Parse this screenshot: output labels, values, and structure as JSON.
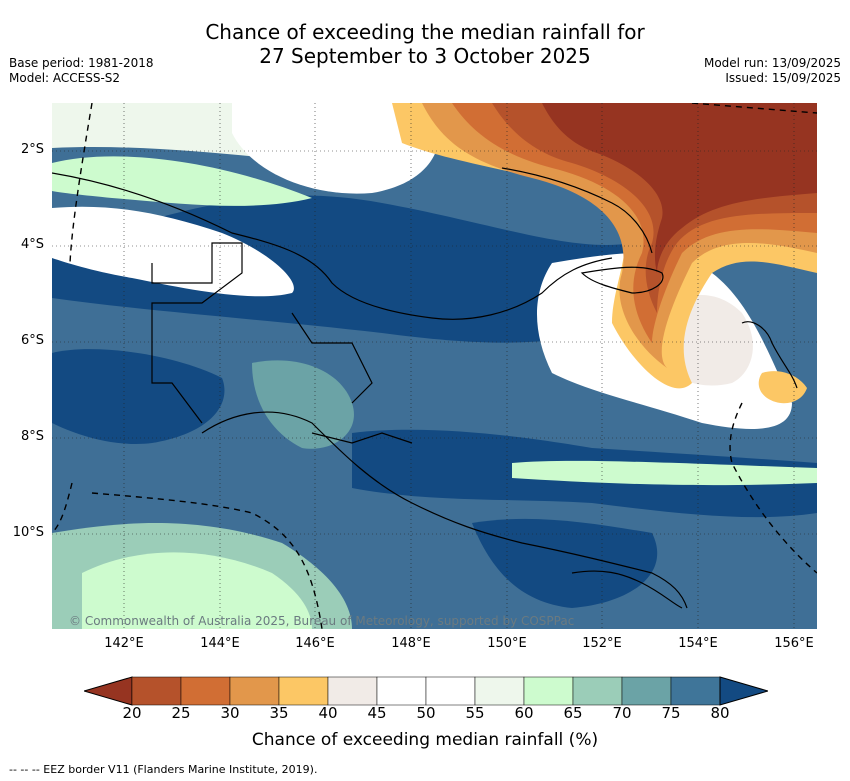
{
  "title": {
    "line1": "Chance of exceeding the median rainfall for",
    "line2": "27 September to 3 October 2025"
  },
  "meta_left": {
    "base_period": "Base period: 1981-2018",
    "model": "Model: ACCESS-S2"
  },
  "meta_right": {
    "model_run": "Model run: 13/09/2025",
    "issued": "Issued: 15/09/2025"
  },
  "map": {
    "lat_labels": [
      "2°S",
      "4°S",
      "6°S",
      "8°S",
      "10°S"
    ],
    "lon_labels": [
      "142°E",
      "144°E",
      "146°E",
      "148°E",
      "150°E",
      "152°E",
      "154°E",
      "156°E"
    ],
    "credit": "© Commonwealth of Australia 2025, Bureau of Meteorology, supported by COSPPac",
    "colors": {
      "ocean_base": "#3f6f96"
    }
  },
  "colorbar": {
    "ticks": [
      "20",
      "25",
      "30",
      "35",
      "40",
      "45",
      "50",
      "55",
      "60",
      "65",
      "70",
      "75",
      "80"
    ],
    "colors": [
      "#963421",
      "#b5522b",
      "#d16e34",
      "#e2974b",
      "#fcc765",
      "#f1ebe7",
      "#ffffff",
      "#ffffff",
      "#eef7ec",
      "#cdfbce",
      "#9bcdb8",
      "#6ba3a6",
      "#3f7599",
      "#134a82"
    ],
    "label": "Chance of exceeding median rainfall (%)"
  },
  "footer": "--  --  -- EEZ border V11 (Flanders Marine Institute, 2019)."
}
